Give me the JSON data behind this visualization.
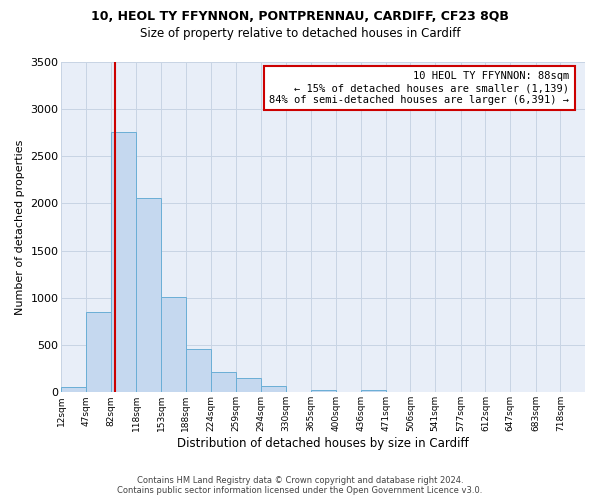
{
  "title": "10, HEOL TY FFYNNON, PONTPRENNAU, CARDIFF, CF23 8QB",
  "subtitle": "Size of property relative to detached houses in Cardiff",
  "xlabel": "Distribution of detached houses by size in Cardiff",
  "ylabel": "Number of detached properties",
  "bar_color": "#c5d8ef",
  "bar_edge_color": "#6aaed6",
  "background_color": "#ffffff",
  "plot_bg_color": "#e8eef8",
  "grid_color": "#c8d4e4",
  "annotation_line_color": "#cc0000",
  "annotation_property_sqm": 88,
  "annotation_text_line1": "10 HEOL TY FFYNNON: 88sqm",
  "annotation_text_line2": "← 15% of detached houses are smaller (1,139)",
  "annotation_text_line3": "84% of semi-detached houses are larger (6,391) →",
  "annotation_box_color": "#ffffff",
  "annotation_box_edge_color": "#cc0000",
  "bin_edges": [
    12,
    47,
    82,
    118,
    153,
    188,
    224,
    259,
    294,
    330,
    365,
    400,
    436,
    471,
    506,
    541,
    577,
    612,
    647,
    683,
    718,
    753
  ],
  "bin_labels": [
    "12sqm",
    "47sqm",
    "82sqm",
    "118sqm",
    "153sqm",
    "188sqm",
    "224sqm",
    "259sqm",
    "294sqm",
    "330sqm",
    "365sqm",
    "400sqm",
    "436sqm",
    "471sqm",
    "506sqm",
    "541sqm",
    "577sqm",
    "612sqm",
    "647sqm",
    "683sqm",
    "718sqm"
  ],
  "bar_heights": [
    60,
    850,
    2750,
    2060,
    1010,
    460,
    215,
    150,
    65,
    5,
    25,
    5,
    25,
    5,
    0,
    0,
    0,
    0,
    0,
    0,
    5
  ],
  "ylim": [
    0,
    3500
  ],
  "yticks": [
    0,
    500,
    1000,
    1500,
    2000,
    2500,
    3000,
    3500
  ],
  "footer_line1": "Contains HM Land Registry data © Crown copyright and database right 2024.",
  "footer_line2": "Contains public sector information licensed under the Open Government Licence v3.0."
}
